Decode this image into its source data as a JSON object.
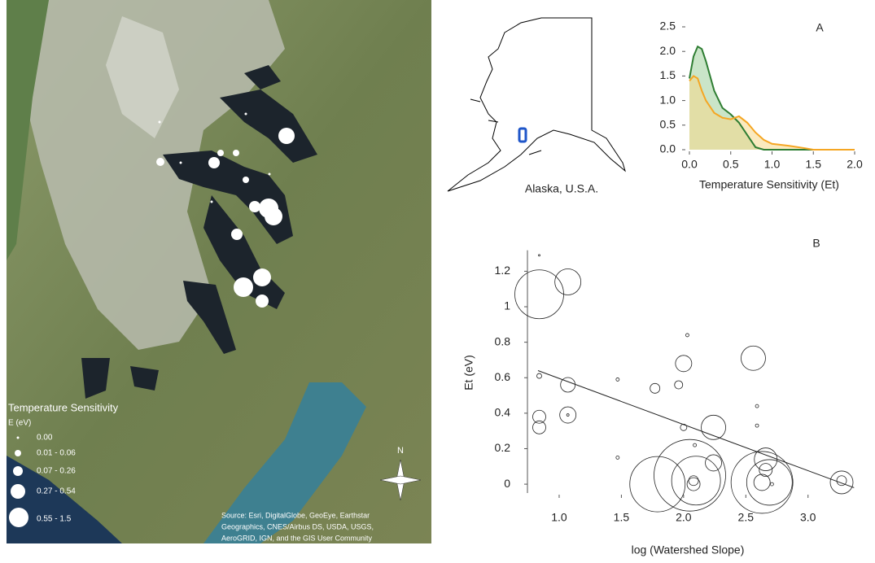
{
  "map": {
    "legend_title": "Temperature Sensitivity",
    "legend_unit": "E (eV)",
    "legend_items": [
      "0.00",
      "0.01 - 0.06",
      "0.07 - 0.26",
      "0.27 - 0.54",
      "0.55 - 1.5"
    ],
    "north": "N",
    "source": [
      "Source: Esri, DigitalGlobe, GeoEye, Earthstar",
      "Geographics, CNES/Airbus DS, USDA, USGS,",
      "AeroGRID, IGN, and the GIS User Community"
    ]
  },
  "inset": {
    "label": "Alaska, U.S.A."
  },
  "chart_data": [
    {
      "type": "area",
      "panel": "A",
      "xlabel": "Temperature Sensitivity (Et)",
      "x": [
        0,
        0.05,
        0.1,
        0.15,
        0.2,
        0.3,
        0.4,
        0.5,
        0.6,
        0.7,
        0.8,
        0.9,
        1.0,
        1.2,
        1.4,
        1.5,
        2.0
      ],
      "series": [
        {
          "color": "#2e7d32",
          "fill": "#9fd09a",
          "values": [
            1.45,
            1.9,
            2.1,
            2.05,
            1.8,
            1.2,
            0.85,
            0.72,
            0.55,
            0.3,
            0.05,
            0,
            0,
            0,
            0,
            0,
            0
          ]
        },
        {
          "color": "#f5a623",
          "fill": "#f6d88a",
          "values": [
            1.4,
            1.5,
            1.45,
            1.2,
            1.0,
            0.75,
            0.65,
            0.62,
            0.68,
            0.55,
            0.35,
            0.2,
            0.12,
            0.08,
            0.03,
            0,
            0
          ]
        }
      ],
      "xlim": [
        0,
        2
      ],
      "ylim": [
        0,
        2.5
      ],
      "xticks": [
        {
          "value": 0,
          "label": "0.0"
        },
        0.5,
        {
          "value": 1,
          "label": "1.0"
        },
        1.5,
        {
          "value": 2,
          "label": "2.0"
        }
      ],
      "yticks": [
        {
          "value": 0,
          "label": "0.0"
        },
        0.5,
        {
          "value": 1,
          "label": "1.0"
        },
        1.5,
        {
          "value": 2,
          "label": "2.0"
        },
        2.5
      ]
    },
    {
      "type": "scatter",
      "panel": "B",
      "xlabel": "log (Watershed Slope)",
      "ylabel": "Et (eV)",
      "color": "#222222",
      "x": [
        0.84,
        1.07,
        0.84,
        0.84,
        0.84,
        0.84,
        1.07,
        1.07,
        1.07,
        1.47,
        1.47,
        1.77,
        2.03,
        2.0,
        1.96,
        2.0,
        2.09,
        2.24,
        2.24,
        2.56,
        2.59,
        2.59,
        2.66,
        2.66,
        1.79,
        2.05,
        2.1,
        2.08,
        2.08,
        2.63,
        2.69,
        2.63,
        2.71,
        3.27,
        3.27
      ],
      "values": [
        1.07,
        1.14,
        1.29,
        0.61,
        0.38,
        0.32,
        0.56,
        0.39,
        0.39,
        0.59,
        0.15,
        0.54,
        0.84,
        0.68,
        0.56,
        0.32,
        0.22,
        0.32,
        0.12,
        0.71,
        0.44,
        0.33,
        0.14,
        0.08,
        0.0,
        0.05,
        0.02,
        0.0,
        0.02,
        0.01,
        0.01,
        0.01,
        0.0,
        0.01,
        0.02
      ],
      "sizes": [
        30,
        16,
        1,
        3,
        8,
        8,
        9,
        10,
        1.5,
        2,
        2,
        6,
        2,
        10,
        5,
        4,
        2,
        15,
        10,
        15,
        2,
        2,
        14,
        8,
        34,
        44,
        30,
        8,
        6,
        38,
        28,
        10,
        2,
        14,
        6
      ],
      "trend": {
        "x": [
          0.83,
          3.37
        ],
        "y": [
          0.64,
          -0.02
        ]
      },
      "xlim": [
        0.75,
        3.44
      ],
      "ylim": [
        -0.05,
        1.3
      ],
      "xticks": [
        {
          "value": 1,
          "label": "1.0"
        },
        1.5,
        {
          "value": 2,
          "label": "2.0"
        },
        2.5,
        {
          "value": 3,
          "label": "3.0"
        }
      ],
      "yticks": [
        0,
        0.2,
        0.4,
        0.6,
        0.8,
        1,
        1.2
      ]
    }
  ]
}
